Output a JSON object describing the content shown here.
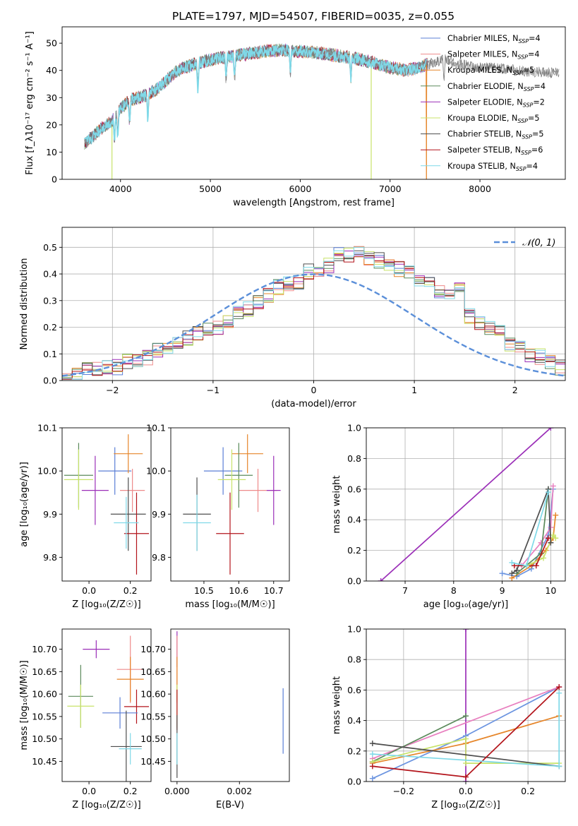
{
  "title": "PLATE=1797, MJD=54507, FIBERID=0035, z=0.055",
  "colors": {
    "Chabrier MILES": "#5b7fd6",
    "Salpeter MILES": "#ee8a8a",
    "Kroupa MILES": "#e6862a",
    "Chabrier ELODIE": "#5b8a5b",
    "Salpeter ELODIE": "#9b2fb8",
    "Kroupa ELODIE": "#c8e36a",
    "Chabrier STELIB": "#4d4d4d",
    "Salpeter STELIB": "#b3141b",
    "Kroupa STELIB": "#7fd9e8",
    "Chabrier MILES line": "#6b94e0",
    "normal": "#5b8fd9",
    "pink": "#e87fbf"
  },
  "chart_data": [
    {
      "id": "spectrum",
      "type": "line",
      "title": "PLATE=1797, MJD=54507, FIBERID=0035, z=0.055",
      "xlabel": "wavelength [Angstrom, rest frame]",
      "ylabel": "Flux [f_λ10⁻¹⁷ erg cm⁻² s⁻¹ A⁻¹]",
      "xlim": [
        3350,
        8950
      ],
      "ylim": [
        0,
        56
      ],
      "xticks": [
        4000,
        5000,
        6000,
        7000,
        8000
      ],
      "yticks": [
        0,
        10,
        20,
        30,
        40,
        50
      ],
      "legend_position": "top-right",
      "series": [
        {
          "name": "Chabrier MILES",
          "label_main": "Chabrier MILES, N",
          "label_sub": "SSP",
          "label_end": "=4"
        },
        {
          "name": "Salpeter MILES",
          "label_main": "Salpeter MILES, N",
          "label_sub": "SSP",
          "label_end": "=4"
        },
        {
          "name": "Kroupa MILES",
          "label_main": "Kroupa MILES, N",
          "label_sub": "SSP",
          "label_end": "=5"
        },
        {
          "name": "Chabrier ELODIE",
          "label_main": "Chabrier ELODIE, N",
          "label_sub": "SSP",
          "label_end": "=4"
        },
        {
          "name": "Salpeter ELODIE",
          "label_main": "Salpeter ELODIE, N",
          "label_sub": "SSP",
          "label_end": "=2"
        },
        {
          "name": "Kroupa ELODIE",
          "label_main": "Kroupa ELODIE, N",
          "label_sub": "SSP",
          "label_end": "=5"
        },
        {
          "name": "Chabrier STELIB",
          "label_main": "Chabrier STELIB, N",
          "label_sub": "SSP",
          "label_end": "=5"
        },
        {
          "name": "Salpeter STELIB",
          "label_main": "Salpeter STELIB, N",
          "label_sub": "SSP",
          "label_end": "=6"
        },
        {
          "name": "Kroupa STELIB",
          "label_main": "Kroupa STELIB, N",
          "label_sub": "SSP",
          "label_end": "=4"
        }
      ],
      "continuum": [
        [
          3600,
          13
        ],
        [
          3700,
          16
        ],
        [
          3800,
          19
        ],
        [
          3900,
          21
        ],
        [
          4000,
          26
        ],
        [
          4100,
          29
        ],
        [
          4200,
          30
        ],
        [
          4300,
          31
        ],
        [
          4400,
          33
        ],
        [
          4500,
          36
        ],
        [
          4600,
          39
        ],
        [
          4700,
          41
        ],
        [
          4800,
          42
        ],
        [
          4900,
          43
        ],
        [
          5000,
          44
        ],
        [
          5200,
          45
        ],
        [
          5400,
          46
        ],
        [
          5600,
          47
        ],
        [
          5800,
          47.5
        ],
        [
          6000,
          47
        ],
        [
          6200,
          46.5
        ],
        [
          6400,
          45.5
        ],
        [
          6600,
          44.5
        ],
        [
          6800,
          43
        ],
        [
          7000,
          41
        ],
        [
          7200,
          40
        ],
        [
          7400,
          42
        ],
        [
          7600,
          44
        ],
        [
          7800,
          42
        ],
        [
          8000,
          41
        ],
        [
          8200,
          41
        ],
        [
          8400,
          40
        ],
        [
          8600,
          39.5
        ],
        [
          8800,
          39
        ]
      ],
      "absorption_lines": [
        3933,
        3968,
        4101,
        4304,
        4861,
        5175,
        5270,
        5890,
        6563,
        7600
      ],
      "dropouts": [
        {
          "x": 3905,
          "series": "Kroupa ELODIE"
        },
        {
          "x": 6790,
          "series": "Kroupa ELODIE"
        },
        {
          "x": 7405,
          "series": "Kroupa MILES"
        }
      ]
    },
    {
      "id": "residual-histogram",
      "type": "line",
      "xlabel": "(data-model)/error",
      "ylabel": "Normed distribution",
      "xlim": [
        -2.5,
        2.5
      ],
      "ylim": [
        0,
        0.575
      ],
      "xticks": [
        -2,
        -1,
        0,
        1,
        2
      ],
      "yticks": [
        0.0,
        0.1,
        0.2,
        0.3,
        0.4,
        0.5
      ],
      "grid": true,
      "legend_position": "top-right",
      "legend_label": "𝒩(0, 1)",
      "bin_width": 0.1,
      "bins_from": -2.5,
      "base_values": [
        0.016,
        0.02,
        0.04,
        0.045,
        0.05,
        0.05,
        0.07,
        0.08,
        0.085,
        0.11,
        0.13,
        0.15,
        0.16,
        0.175,
        0.2,
        0.2,
        0.22,
        0.25,
        0.27,
        0.29,
        0.32,
        0.35,
        0.36,
        0.37,
        0.41,
        0.42,
        0.43,
        0.47,
        0.47,
        0.48,
        0.46,
        0.45,
        0.43,
        0.42,
        0.4,
        0.38,
        0.36,
        0.33,
        0.33,
        0.35,
        0.24,
        0.21,
        0.2,
        0.18,
        0.14,
        0.12,
        0.1,
        0.09,
        0.07,
        0.05
      ],
      "normal_curve": {
        "mu": 0,
        "sigma": 1
      }
    },
    {
      "id": "age-vs-Z",
      "type": "scatter",
      "xlabel": "Z [log₁₀(Z/Z☉)]",
      "ylabel": "age  [log₁₀(age/yr)]",
      "xlim": [
        -0.13,
        0.3
      ],
      "ylim": [
        9.745,
        10.1
      ],
      "xticks": [
        0.0,
        0.2
      ],
      "yticks": [
        9.8,
        9.9,
        10.0,
        10.1
      ],
      "points": [
        {
          "series": "Chabrier MILES",
          "x": 0.125,
          "y": 10.0,
          "xerr": 0.08,
          "yerr": 0.055
        },
        {
          "series": "Kroupa MILES",
          "x": 0.19,
          "y": 10.04,
          "xerr": 0.07,
          "yerr": 0.045
        },
        {
          "series": "Salpeter MILES",
          "x": 0.21,
          "y": 9.955,
          "xerr": 0.06,
          "yerr": 0.05
        },
        {
          "series": "Chabrier ELODIE",
          "x": -0.05,
          "y": 9.99,
          "xerr": 0.07,
          "yerr": 0.075
        },
        {
          "series": "Kroupa ELODIE",
          "x": -0.05,
          "y": 9.98,
          "xerr": 0.07,
          "yerr": 0.07
        },
        {
          "series": "Salpeter ELODIE",
          "x": 0.03,
          "y": 9.955,
          "xerr": 0.065,
          "yerr": 0.08
        },
        {
          "series": "Chabrier STELIB",
          "x": 0.19,
          "y": 9.9,
          "xerr": 0.085,
          "yerr": 0.085
        },
        {
          "series": "Salpeter STELIB",
          "x": 0.23,
          "y": 9.855,
          "xerr": 0.06,
          "yerr": 0.095
        },
        {
          "series": "Kroupa STELIB",
          "x": 0.18,
          "y": 9.88,
          "xerr": 0.06,
          "yerr": 0.06
        }
      ]
    },
    {
      "id": "age-vs-mass",
      "type": "scatter",
      "xlabel": "mass [log₁₀(M/M☉)]",
      "ylabel": "",
      "xlim": [
        10.405,
        10.745
      ],
      "ylim": [
        9.745,
        10.1
      ],
      "xticks": [
        10.5,
        10.6,
        10.7
      ],
      "yticks": [
        9.8,
        9.9,
        10.0,
        10.1
      ],
      "points": [
        {
          "series": "Chabrier MILES",
          "x": 10.555,
          "y": 10.0,
          "xerr": 0.055,
          "yerr": 0.055
        },
        {
          "series": "Kroupa MILES",
          "x": 10.625,
          "y": 10.04,
          "xerr": 0.045,
          "yerr": 0.045
        },
        {
          "series": "Salpeter MILES",
          "x": 10.655,
          "y": 9.955,
          "xerr": 0.055,
          "yerr": 0.05
        },
        {
          "series": "Chabrier ELODIE",
          "x": 10.6,
          "y": 9.99,
          "xerr": 0.04,
          "yerr": 0.075
        },
        {
          "series": "Kroupa ELODIE",
          "x": 10.58,
          "y": 9.98,
          "xerr": 0.04,
          "yerr": 0.07
        },
        {
          "series": "Salpeter ELODIE",
          "x": 10.7,
          "y": 9.955,
          "xerr": 0.02,
          "yerr": 0.08
        },
        {
          "series": "Chabrier STELIB",
          "x": 10.48,
          "y": 9.9,
          "xerr": 0.04,
          "yerr": 0.085
        },
        {
          "series": "Salpeter STELIB",
          "x": 10.575,
          "y": 9.855,
          "xerr": 0.04,
          "yerr": 0.095
        },
        {
          "series": "Kroupa STELIB",
          "x": 10.48,
          "y": 9.88,
          "xerr": 0.04,
          "yerr": 0.065
        }
      ]
    },
    {
      "id": "mass-weight-vs-age",
      "type": "line",
      "xlabel": "age  [log₁₀(age/yr)]",
      "ylabel": "mass weight",
      "xlim": [
        6.2,
        10.3
      ],
      "ylim": [
        0,
        1.0
      ],
      "xticks": [
        7,
        8,
        9,
        10
      ],
      "yticks": [
        0.0,
        0.2,
        0.4,
        0.6,
        0.8,
        1.0
      ],
      "grid": true,
      "series": [
        {
          "series": "Salpeter ELODIE",
          "points": [
            [
              6.5,
              0.0
            ],
            [
              10.0,
              1.0
            ]
          ]
        },
        {
          "series": "Chabrier MILES line",
          "points": [
            [
              9.0,
              0.05
            ],
            [
              9.3,
              0.03
            ],
            [
              9.6,
              0.08
            ],
            [
              9.95,
              0.3
            ],
            [
              10.05,
              0.6
            ]
          ]
        },
        {
          "series": "Kroupa MILES",
          "points": [
            [
              9.2,
              0.02
            ],
            [
              9.6,
              0.1
            ],
            [
              9.9,
              0.2
            ],
            [
              10.05,
              0.28
            ],
            [
              10.1,
              0.43
            ]
          ]
        },
        {
          "series": "pink",
          "points": [
            [
              9.4,
              0.1
            ],
            [
              9.8,
              0.25
            ],
            [
              10.0,
              0.35
            ],
            [
              10.05,
              0.62
            ]
          ]
        },
        {
          "series": "Chabrier ELODIE",
          "points": [
            [
              9.3,
              0.05
            ],
            [
              9.8,
              0.18
            ],
            [
              9.95,
              0.6
            ]
          ]
        },
        {
          "series": "Kroupa ELODIE",
          "points": [
            [
              9.5,
              0.1
            ],
            [
              9.85,
              0.15
            ],
            [
              10.05,
              0.3
            ],
            [
              10.1,
              0.28
            ]
          ]
        },
        {
          "series": "Chabrier STELIB",
          "points": [
            [
              9.2,
              0.05
            ],
            [
              9.3,
              0.07
            ],
            [
              9.95,
              0.6
            ],
            [
              10.0,
              0.25
            ]
          ]
        },
        {
          "series": "Salpeter STELIB",
          "points": [
            [
              9.25,
              0.1
            ],
            [
              9.7,
              0.1
            ],
            [
              9.95,
              0.28
            ]
          ]
        },
        {
          "series": "Kroupa STELIB",
          "points": [
            [
              9.2,
              0.12
            ],
            [
              9.5,
              0.1
            ],
            [
              9.95,
              0.58
            ]
          ]
        }
      ]
    },
    {
      "id": "mass-vs-Z",
      "type": "scatter",
      "xlabel": "Z [log₁₀(Z/Z☉)]",
      "ylabel": "mass [log₁₀(M/M☉)]",
      "xlim": [
        -0.13,
        0.3
      ],
      "ylim": [
        10.405,
        10.745
      ],
      "xticks": [
        0.0,
        0.2
      ],
      "yticks": [
        10.45,
        10.5,
        10.55,
        10.6,
        10.65,
        10.7
      ],
      "points": [
        {
          "series": "Salpeter ELODIE",
          "x": 0.035,
          "y": 10.7,
          "xerr": 0.065,
          "yerr": 0.02
        },
        {
          "series": "Salpeter MILES",
          "x": 0.2,
          "y": 10.655,
          "xerr": 0.065,
          "yerr": 0.075
        },
        {
          "series": "Kroupa MILES",
          "x": 0.2,
          "y": 10.633,
          "xerr": 0.065,
          "yerr": 0.05
        },
        {
          "series": "Chabrier ELODIE",
          "x": -0.04,
          "y": 10.595,
          "xerr": 0.06,
          "yerr": 0.07
        },
        {
          "series": "Kroupa ELODIE",
          "x": -0.04,
          "y": 10.573,
          "xerr": 0.065,
          "yerr": 0.048
        },
        {
          "series": "Salpeter STELIB",
          "x": 0.23,
          "y": 10.572,
          "xerr": 0.06,
          "yerr": 0.038
        },
        {
          "series": "Chabrier MILES",
          "x": 0.15,
          "y": 10.558,
          "xerr": 0.085,
          "yerr": 0.035
        },
        {
          "series": "Chabrier STELIB",
          "x": 0.18,
          "y": 10.483,
          "xerr": 0.075,
          "yerr": 0.08
        },
        {
          "series": "Kroupa STELIB",
          "x": 0.2,
          "y": 10.478,
          "xerr": 0.055,
          "yerr": 0.035
        }
      ]
    },
    {
      "id": "mass-vs-EBV",
      "type": "scatter",
      "xlabel": "E(B-V)",
      "ylabel": "",
      "xlim": [
        -0.0002,
        0.0036
      ],
      "ylim": [
        10.405,
        10.745
      ],
      "xticks": [
        0.0,
        0.002
      ],
      "yticks": [
        10.45,
        10.5,
        10.55,
        10.6,
        10.65,
        10.7
      ],
      "points": [
        {
          "series": "Salpeter ELODIE",
          "x": 0.0,
          "y": 10.7,
          "yerr": 0.04
        },
        {
          "series": "Salpeter MILES",
          "x": 0.0,
          "y": 10.655,
          "yerr": 0.075
        },
        {
          "series": "Kroupa MILES",
          "x": 0.0,
          "y": 10.633,
          "yerr": 0.05
        },
        {
          "series": "Kroupa ELODIE",
          "x": 0.0,
          "y": 10.573,
          "yerr": 0.048
        },
        {
          "series": "Salpeter STELIB",
          "x": 0.0,
          "y": 10.565,
          "yerr": 0.045
        },
        {
          "series": "Chabrier STELIB",
          "x": 0.0,
          "y": 10.483,
          "yerr": 0.07
        },
        {
          "series": "Kroupa STELIB",
          "x": 0.0,
          "y": 10.478,
          "yerr": 0.035
        },
        {
          "series": "Chabrier MILES",
          "x": 0.0034,
          "y": 10.54,
          "yerr": 0.073
        }
      ]
    },
    {
      "id": "mass-weight-vs-Z",
      "type": "line",
      "xlabel": "Z [log₁₀(Z/Z☉)]",
      "ylabel": "mass weight",
      "xlim": [
        -0.32,
        0.32
      ],
      "ylim": [
        0,
        1.0
      ],
      "xticks": [
        -0.2,
        0.0,
        0.2
      ],
      "yticks": [
        0.0,
        0.2,
        0.4,
        0.6,
        0.8,
        1.0
      ],
      "grid": true,
      "series": [
        {
          "series": "Salpeter ELODIE",
          "points": [
            [
              0.0,
              0.0
            ],
            [
              0.0,
              1.0
            ]
          ]
        },
        {
          "series": "Chabrier MILES line",
          "points": [
            [
              -0.3,
              0.02
            ],
            [
              0.0,
              0.3
            ],
            [
              0.3,
              0.62
            ]
          ]
        },
        {
          "series": "pink",
          "points": [
            [
              -0.3,
              0.15
            ],
            [
              0.3,
              0.62
            ]
          ]
        },
        {
          "series": "Kroupa MILES",
          "points": [
            [
              -0.3,
              0.12
            ],
            [
              0.0,
              0.25
            ],
            [
              0.3,
              0.43
            ]
          ]
        },
        {
          "series": "Chabrier ELODIE",
          "points": [
            [
              -0.3,
              0.13
            ],
            [
              0.0,
              0.43
            ]
          ]
        },
        {
          "series": "Kroupa ELODIE",
          "points": [
            [
              -0.3,
              0.13
            ],
            [
              0.0,
              0.28
            ],
            [
              0.0,
              0.12
            ],
            [
              0.3,
              0.12
            ]
          ]
        },
        {
          "series": "Chabrier STELIB",
          "points": [
            [
              -0.3,
              0.25
            ],
            [
              0.3,
              0.1
            ]
          ]
        },
        {
          "series": "Salpeter STELIB",
          "points": [
            [
              -0.3,
              0.1
            ],
            [
              0.0,
              0.03
            ],
            [
              0.3,
              0.62
            ]
          ]
        },
        {
          "series": "Kroupa STELIB",
          "points": [
            [
              -0.3,
              0.18
            ],
            [
              0.3,
              0.1
            ],
            [
              0.3,
              0.58
            ]
          ]
        }
      ]
    }
  ]
}
